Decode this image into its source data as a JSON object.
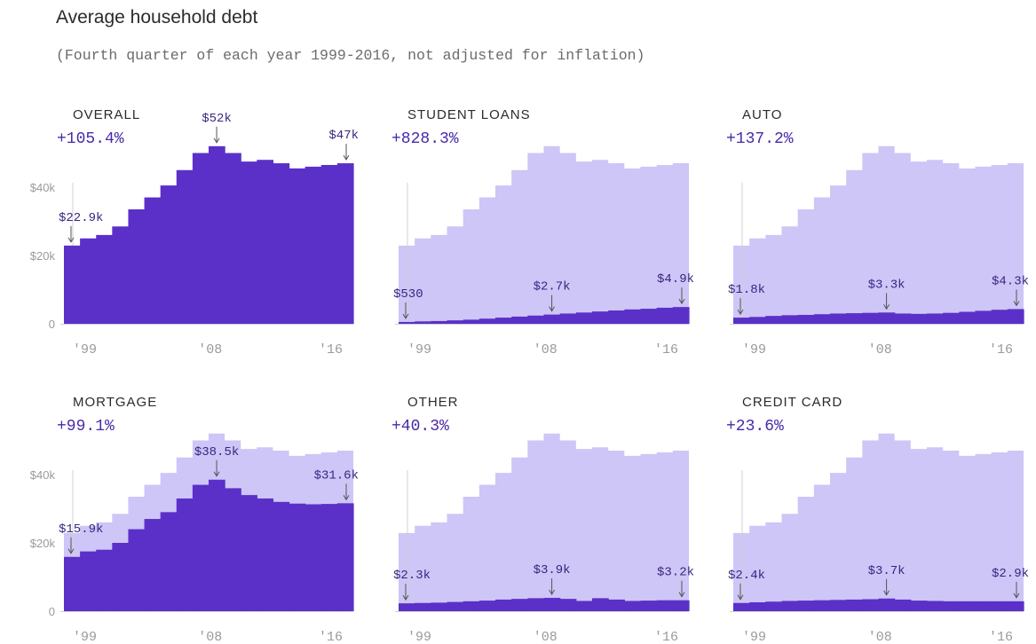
{
  "header": {
    "title": "Average household debt",
    "subtitle": "(Fourth quarter of each year 1999-2016, not adjusted for inflation)"
  },
  "colors": {
    "dark": "#5b30c8",
    "light": "#cdc6f7",
    "axis": "#d0d0d0",
    "arrow": "#555555"
  },
  "chart_data": [
    {
      "type": "area",
      "name": "OVERALL",
      "change": "+105.4%",
      "x": [
        1999,
        2000,
        2001,
        2002,
        2003,
        2004,
        2005,
        2006,
        2007,
        2008,
        2009,
        2010,
        2011,
        2012,
        2013,
        2014,
        2015,
        2016
      ],
      "total": [
        22.9,
        25,
        26,
        28.5,
        33.5,
        37,
        40.5,
        45,
        50,
        52,
        50,
        47.5,
        48,
        47,
        45.5,
        46,
        46.5,
        47
      ],
      "values": [
        22.9,
        25,
        26,
        28.5,
        33.5,
        37,
        40.5,
        45,
        50,
        52,
        50,
        47.5,
        48,
        47,
        45.5,
        46,
        46.5,
        47
      ],
      "ylim": [
        0,
        60
      ],
      "yticks": [
        "$40k",
        "$20k",
        "0"
      ],
      "xticks": [
        "'99",
        "'08",
        "'16"
      ],
      "annotations": [
        {
          "x": 1999,
          "label": "$22.9k"
        },
        {
          "x": 2008,
          "label": "$52k"
        },
        {
          "x": 2016,
          "label": "$47k"
        }
      ]
    },
    {
      "type": "area",
      "name": "STUDENT LOANS",
      "change": "+828.3%",
      "x": [
        1999,
        2000,
        2001,
        2002,
        2003,
        2004,
        2005,
        2006,
        2007,
        2008,
        2009,
        2010,
        2011,
        2012,
        2013,
        2014,
        2015,
        2016
      ],
      "total": [
        22.9,
        25,
        26,
        28.5,
        33.5,
        37,
        40.5,
        45,
        50,
        52,
        50,
        47.5,
        48,
        47,
        45.5,
        46,
        46.5,
        47
      ],
      "values": [
        0.53,
        0.7,
        0.8,
        1.0,
        1.2,
        1.5,
        1.8,
        2.1,
        2.4,
        2.7,
        3.0,
        3.3,
        3.6,
        3.9,
        4.2,
        4.4,
        4.7,
        4.9
      ],
      "ylim": [
        0,
        60
      ],
      "yticks": [],
      "xticks": [
        "'99",
        "'08",
        "'16"
      ],
      "annotations": [
        {
          "x": 1999,
          "label": "$530"
        },
        {
          "x": 2008,
          "label": "$2.7k"
        },
        {
          "x": 2016,
          "label": "$4.9k"
        }
      ]
    },
    {
      "type": "area",
      "name": "AUTO",
      "change": "+137.2%",
      "x": [
        1999,
        2000,
        2001,
        2002,
        2003,
        2004,
        2005,
        2006,
        2007,
        2008,
        2009,
        2010,
        2011,
        2012,
        2013,
        2014,
        2015,
        2016
      ],
      "total": [
        22.9,
        25,
        26,
        28.5,
        33.5,
        37,
        40.5,
        45,
        50,
        52,
        50,
        47.5,
        48,
        47,
        45.5,
        46,
        46.5,
        47
      ],
      "values": [
        1.8,
        2.0,
        2.3,
        2.5,
        2.6,
        2.8,
        3.0,
        3.1,
        3.2,
        3.3,
        3.0,
        2.9,
        3.0,
        3.2,
        3.5,
        3.8,
        4.1,
        4.3
      ],
      "ylim": [
        0,
        60
      ],
      "yticks": [],
      "xticks": [
        "'99",
        "'08",
        "'16"
      ],
      "annotations": [
        {
          "x": 1999,
          "label": "$1.8k"
        },
        {
          "x": 2008,
          "label": "$3.3k"
        },
        {
          "x": 2016,
          "label": "$4.3k"
        }
      ]
    },
    {
      "type": "area",
      "name": "MORTGAGE",
      "change": "+99.1%",
      "x": [
        1999,
        2000,
        2001,
        2002,
        2003,
        2004,
        2005,
        2006,
        2007,
        2008,
        2009,
        2010,
        2011,
        2012,
        2013,
        2014,
        2015,
        2016
      ],
      "total": [
        22.9,
        25,
        26,
        28.5,
        33.5,
        37,
        40.5,
        45,
        50,
        52,
        50,
        47.5,
        48,
        47,
        45.5,
        46,
        46.5,
        47
      ],
      "values": [
        15.9,
        17.5,
        18,
        20,
        24,
        27,
        29,
        33,
        37,
        38.5,
        36,
        34,
        33,
        32,
        31.5,
        31.3,
        31.4,
        31.6
      ],
      "ylim": [
        0,
        60
      ],
      "yticks": [
        "$40k",
        "$20k",
        "0"
      ],
      "xticks": [
        "'99",
        "'08",
        "'16"
      ],
      "annotations": [
        {
          "x": 1999,
          "label": "$15.9k"
        },
        {
          "x": 2008,
          "label": "$38.5k"
        },
        {
          "x": 2016,
          "label": "$31.6k"
        }
      ]
    },
    {
      "type": "area",
      "name": "OTHER",
      "change": "+40.3%",
      "x": [
        1999,
        2000,
        2001,
        2002,
        2003,
        2004,
        2005,
        2006,
        2007,
        2008,
        2009,
        2010,
        2011,
        2012,
        2013,
        2014,
        2015,
        2016
      ],
      "total": [
        22.9,
        25,
        26,
        28.5,
        33.5,
        37,
        40.5,
        45,
        50,
        52,
        50,
        47.5,
        48,
        47,
        45.5,
        46,
        46.5,
        47
      ],
      "values": [
        2.3,
        2.4,
        2.5,
        2.7,
        2.9,
        3.1,
        3.4,
        3.6,
        3.8,
        3.9,
        3.6,
        3.0,
        3.8,
        3.4,
        3.0,
        3.1,
        3.2,
        3.2
      ],
      "ylim": [
        0,
        60
      ],
      "yticks": [],
      "xticks": [
        "'99",
        "'08",
        "'16"
      ],
      "annotations": [
        {
          "x": 1999,
          "label": "$2.3k"
        },
        {
          "x": 2008,
          "label": "$3.9k"
        },
        {
          "x": 2016,
          "label": "$3.2k"
        }
      ]
    },
    {
      "type": "area",
      "name": "CREDIT CARD",
      "change": "+23.6%",
      "x": [
        1999,
        2000,
        2001,
        2002,
        2003,
        2004,
        2005,
        2006,
        2007,
        2008,
        2009,
        2010,
        2011,
        2012,
        2013,
        2014,
        2015,
        2016
      ],
      "total": [
        22.9,
        25,
        26,
        28.5,
        33.5,
        37,
        40.5,
        45,
        50,
        52,
        50,
        47.5,
        48,
        47,
        45.5,
        46,
        46.5,
        47
      ],
      "values": [
        2.4,
        2.6,
        2.8,
        3.0,
        3.1,
        3.2,
        3.3,
        3.4,
        3.5,
        3.7,
        3.4,
        3.1,
        3.0,
        2.9,
        2.9,
        2.9,
        2.9,
        2.9
      ],
      "ylim": [
        0,
        60
      ],
      "yticks": [],
      "xticks": [
        "'99",
        "'08",
        "'16"
      ],
      "annotations": [
        {
          "x": 1999,
          "label": "$2.4k"
        },
        {
          "x": 2008,
          "label": "$3.7k"
        },
        {
          "x": 2016,
          "label": "$2.9k"
        }
      ]
    }
  ]
}
